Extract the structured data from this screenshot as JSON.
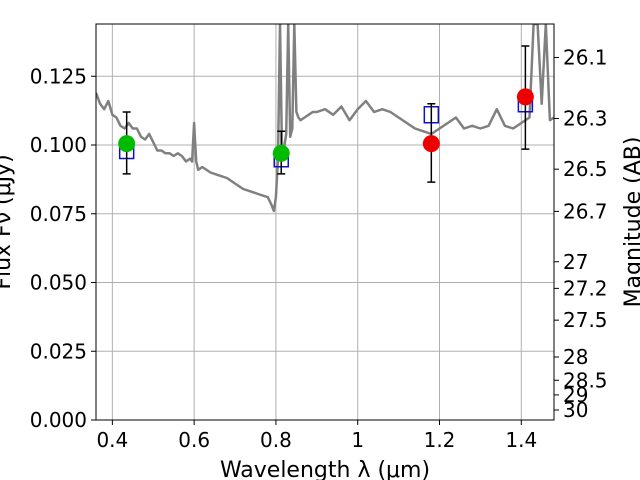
{
  "chart_data": {
    "type": "scatter",
    "title": "",
    "xlabel": "Wavelength  λ (μm)",
    "ylabel": "Flux  Fν (μJy)",
    "ylabel_right": "Magnitude (AB)",
    "xlim": [
      0.36,
      1.48
    ],
    "ylim": [
      0.0,
      0.144
    ],
    "grid": true,
    "legend": "none",
    "x_ticks": [
      0.4,
      0.6,
      0.8,
      1.0,
      1.2,
      1.4
    ],
    "x_tick_labels": [
      "0.4",
      "0.6",
      "0.8",
      "1",
      "1.2",
      "1.4"
    ],
    "y_ticks": [
      0.0,
      0.025,
      0.05,
      0.075,
      0.1,
      0.125
    ],
    "y_tick_labels": [
      "0.000",
      "0.025",
      "0.050",
      "0.075",
      "0.100",
      "0.125"
    ],
    "right_ticks": [
      26.1,
      26.3,
      26.5,
      26.7,
      27,
      27.2,
      27.5,
      28,
      28.5,
      29,
      30
    ],
    "right_tick_labels": [
      "26.1",
      "26.3",
      "26.5",
      "26.7",
      "27",
      "27.2",
      "27.5",
      "28",
      "28.5",
      "29",
      "30"
    ],
    "model_spectrum": {
      "color": "#808080",
      "x": [
        0.36,
        0.37,
        0.38,
        0.39,
        0.4,
        0.41,
        0.42,
        0.43,
        0.44,
        0.45,
        0.46,
        0.47,
        0.48,
        0.49,
        0.5,
        0.51,
        0.52,
        0.53,
        0.54,
        0.55,
        0.56,
        0.57,
        0.58,
        0.59,
        0.595,
        0.6,
        0.605,
        0.61,
        0.62,
        0.64,
        0.66,
        0.68,
        0.7,
        0.72,
        0.74,
        0.76,
        0.78,
        0.79,
        0.795,
        0.8,
        0.805,
        0.81,
        0.815,
        0.82,
        0.825,
        0.83,
        0.835,
        0.84,
        0.845,
        0.85,
        0.855,
        0.86,
        0.87,
        0.88,
        0.89,
        0.9,
        0.92,
        0.94,
        0.96,
        0.98,
        1.0,
        1.02,
        1.04,
        1.06,
        1.08,
        1.1,
        1.12,
        1.14,
        1.16,
        1.18,
        1.2,
        1.22,
        1.24,
        1.26,
        1.28,
        1.3,
        1.32,
        1.34,
        1.36,
        1.38,
        1.4,
        1.42,
        1.43,
        1.44,
        1.45,
        1.46,
        1.47,
        1.48
      ],
      "y": [
        0.119,
        0.115,
        0.113,
        0.116,
        0.111,
        0.11,
        0.107,
        0.106,
        0.108,
        0.106,
        0.106,
        0.103,
        0.102,
        0.104,
        0.101,
        0.098,
        0.098,
        0.097,
        0.097,
        0.096,
        0.097,
        0.096,
        0.094,
        0.095,
        0.094,
        0.108,
        0.094,
        0.091,
        0.092,
        0.09,
        0.089,
        0.088,
        0.086,
        0.084,
        0.083,
        0.082,
        0.081,
        0.078,
        0.076,
        0.081,
        0.095,
        0.144,
        0.095,
        0.099,
        0.104,
        0.144,
        0.103,
        0.106,
        0.144,
        0.112,
        0.11,
        0.109,
        0.11,
        0.111,
        0.112,
        0.112,
        0.113,
        0.111,
        0.114,
        0.109,
        0.113,
        0.116,
        0.112,
        0.113,
        0.112,
        0.11,
        0.108,
        0.106,
        0.105,
        0.104,
        0.106,
        0.108,
        0.11,
        0.106,
        0.107,
        0.106,
        0.107,
        0.113,
        0.107,
        0.106,
        0.108,
        0.11,
        0.144,
        0.144,
        0.115,
        0.144,
        0.109,
        0.11
      ]
    },
    "series": [
      {
        "color": "#1010cc",
        "marker": "square-open",
        "x": [
          0.435,
          0.813,
          1.18,
          1.41
        ],
        "y": [
          0.098,
          0.095,
          0.111,
          0.115
        ]
      },
      {
        "color": "#00bb00",
        "marker": "circle",
        "x": [
          0.435,
          0.813
        ],
        "y": [
          0.1005,
          0.097
        ],
        "yerr_low": [
          0.0895,
          0.0895
        ],
        "yerr_high": [
          0.112,
          0.105
        ]
      },
      {
        "color": "#ee0000",
        "marker": "circle",
        "x": [
          1.18,
          1.41
        ],
        "y": [
          0.1005,
          0.1175
        ],
        "yerr_low": [
          0.0865,
          0.0985
        ],
        "yerr_high": [
          0.115,
          0.136
        ]
      }
    ]
  }
}
